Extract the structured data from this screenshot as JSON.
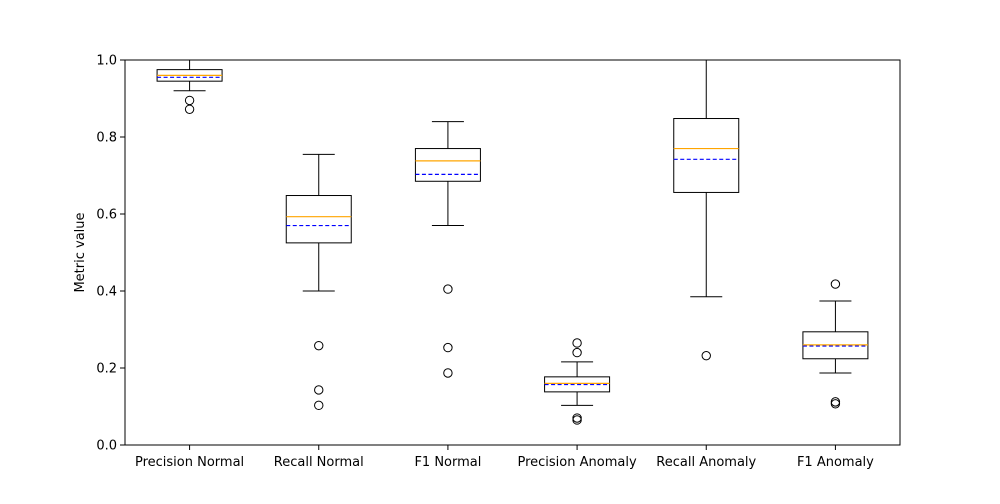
{
  "chart_data": {
    "type": "box",
    "title": "",
    "xlabel": "",
    "ylabel": "Metric value",
    "ylim": [
      0.0,
      1.0
    ],
    "yticks": [
      0.0,
      0.2,
      0.4,
      0.6,
      0.8,
      1.0
    ],
    "ytick_labels": [
      "0.0",
      "0.2",
      "0.4",
      "0.6",
      "0.8",
      "1.0"
    ],
    "grid": false,
    "median_color": "#ffa500",
    "mean_color": "#0000ff",
    "categories": [
      "Precision Normal",
      "Recall Normal",
      "F1 Normal",
      "Precision Anomaly",
      "Recall Anomaly",
      "F1 Anomaly"
    ],
    "boxes": [
      {
        "whisker_low": 0.92,
        "q1": 0.945,
        "median": 0.96,
        "mean": 0.955,
        "q3": 0.975,
        "whisker_high": 1.0,
        "outliers": [
          0.895,
          0.872
        ]
      },
      {
        "whisker_low": 0.4,
        "q1": 0.525,
        "median": 0.593,
        "mean": 0.57,
        "q3": 0.648,
        "whisker_high": 0.755,
        "outliers": [
          0.258,
          0.143,
          0.103
        ]
      },
      {
        "whisker_low": 0.57,
        "q1": 0.685,
        "median": 0.738,
        "mean": 0.703,
        "q3": 0.77,
        "whisker_high": 0.84,
        "outliers": [
          0.405,
          0.253,
          0.187
        ]
      },
      {
        "whisker_low": 0.103,
        "q1": 0.138,
        "median": 0.16,
        "mean": 0.157,
        "q3": 0.177,
        "whisker_high": 0.216,
        "outliers": [
          0.265,
          0.24,
          0.07,
          0.065
        ]
      },
      {
        "whisker_low": 0.385,
        "q1": 0.656,
        "median": 0.77,
        "mean": 0.742,
        "q3": 0.848,
        "whisker_high": 1.0,
        "outliers": [
          0.232
        ]
      },
      {
        "whisker_low": 0.187,
        "q1": 0.224,
        "median": 0.26,
        "mean": 0.257,
        "q3": 0.294,
        "whisker_high": 0.374,
        "outliers": [
          0.418,
          0.112,
          0.107
        ]
      }
    ]
  }
}
